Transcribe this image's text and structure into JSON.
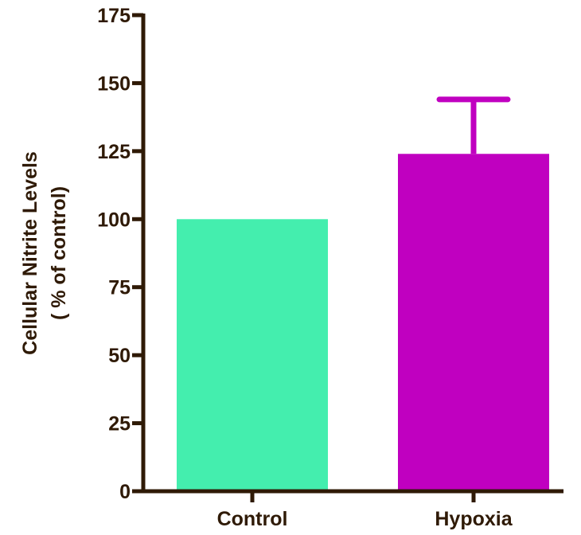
{
  "chart_data": {
    "type": "bar",
    "title": "",
    "ylabel_lines": [
      "Cellular Nitrite Levels",
      "( % of control)"
    ],
    "xlabel": "",
    "categories": [
      "Control",
      "Hypoxia"
    ],
    "values": [
      100,
      124
    ],
    "error_upper": [
      0,
      20
    ],
    "bar_colors": [
      "#44eeae",
      "#c000c0"
    ],
    "axis_color": "#2f1a06",
    "ylim": [
      0,
      175
    ],
    "yticks": [
      "0",
      "25",
      "50",
      "75",
      "100",
      "125",
      "150",
      "175"
    ],
    "grid": false,
    "legend": "none"
  }
}
